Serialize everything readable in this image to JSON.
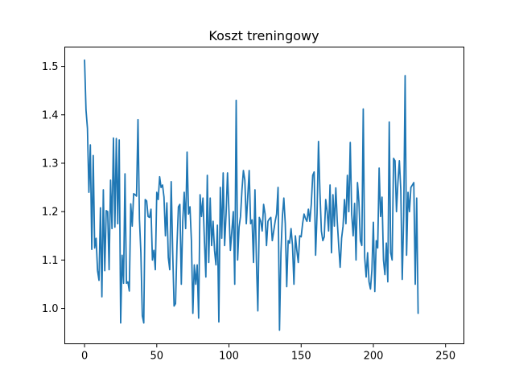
{
  "chart_data": {
    "type": "line",
    "title": "Koszt treningowy",
    "xlabel": "",
    "ylabel": "",
    "xlim": [
      -13.7,
      262.7
    ],
    "ylim": [
      0.927,
      1.54
    ],
    "xticks": [
      0,
      50,
      100,
      150,
      200,
      250
    ],
    "xtick_labels": [
      "0",
      "50",
      "100",
      "150",
      "200",
      "250"
    ],
    "yticks": [
      1.0,
      1.1,
      1.2,
      1.3,
      1.4,
      1.5
    ],
    "ytick_labels": [
      "1.0",
      "1.1",
      "1.2",
      "1.3",
      "1.4",
      "1.5"
    ],
    "grid": false,
    "series": [
      {
        "color": "#1f77b4",
        "x_start": 0,
        "x_step": 1,
        "values": [
          1.513,
          1.41,
          1.372,
          1.24,
          1.338,
          1.122,
          1.316,
          1.125,
          1.145,
          1.078,
          1.058,
          1.208,
          1.024,
          1.245,
          1.078,
          1.202,
          1.2,
          1.08,
          1.265,
          1.165,
          1.352,
          1.168,
          1.351,
          1.175,
          1.348,
          0.97,
          1.11,
          1.052,
          1.278,
          1.052,
          1.055,
          1.036,
          1.216,
          1.17,
          1.237,
          1.235,
          1.232,
          1.39,
          1.185,
          1.115,
          0.985,
          0.97,
          1.225,
          1.222,
          1.19,
          1.188,
          1.205,
          1.1,
          1.12,
          1.08,
          1.24,
          1.225,
          1.272,
          1.25,
          1.255,
          1.23,
          1.15,
          1.218,
          1.105,
          1.08,
          1.262,
          1.12,
          1.005,
          1.01,
          1.13,
          1.21,
          1.215,
          1.05,
          1.18,
          1.24,
          1.165,
          1.323,
          1.195,
          1.21,
          1.14,
          0.99,
          1.09,
          1.05,
          1.09,
          0.98,
          1.235,
          1.19,
          1.228,
          1.14,
          1.065,
          1.275,
          1.095,
          1.228,
          1.13,
          1.18,
          1.12,
          1.09,
          1.172,
          0.972,
          1.25,
          1.145,
          1.28,
          1.13,
          1.195,
          1.28,
          1.2,
          1.12,
          1.16,
          1.2,
          1.05,
          1.43,
          1.1,
          1.168,
          1.19,
          1.245,
          1.285,
          1.265,
          1.175,
          1.23,
          1.285,
          1.175,
          1.183,
          1.095,
          1.245,
          1.1,
          0.995,
          1.188,
          1.18,
          1.16,
          1.215,
          1.195,
          1.13,
          1.18,
          1.185,
          1.188,
          1.14,
          1.16,
          1.18,
          1.195,
          1.25,
          0.955,
          1.115,
          1.19,
          1.228,
          1.175,
          1.045,
          1.14,
          1.135,
          1.165,
          1.13,
          1.05,
          1.15,
          1.12,
          1.095,
          1.15,
          1.148,
          1.175,
          1.195,
          1.186,
          1.18,
          1.205,
          1.18,
          1.215,
          1.275,
          1.282,
          1.11,
          1.195,
          1.345,
          1.24,
          1.16,
          1.14,
          1.148,
          1.225,
          1.2,
          1.16,
          1.255,
          1.115,
          1.235,
          1.17,
          1.249,
          1.18,
          1.13,
          1.085,
          1.145,
          1.17,
          1.225,
          1.175,
          1.275,
          1.2,
          1.343,
          1.195,
          1.15,
          1.217,
          1.1,
          1.26,
          1.22,
          1.14,
          1.13,
          1.412,
          1.105,
          1.065,
          1.115,
          1.055,
          1.04,
          1.08,
          1.178,
          1.035,
          1.14,
          1.125,
          1.29,
          1.19,
          1.23,
          1.1,
          1.07,
          1.135,
          1.055,
          1.385,
          1.115,
          1.1,
          1.31,
          1.305,
          1.2,
          1.26,
          1.305,
          1.245,
          1.06,
          1.19,
          1.481,
          1.11,
          1.24,
          1.2,
          1.25,
          1.255,
          1.26,
          1.05,
          1.228,
          0.99
        ]
      }
    ]
  }
}
